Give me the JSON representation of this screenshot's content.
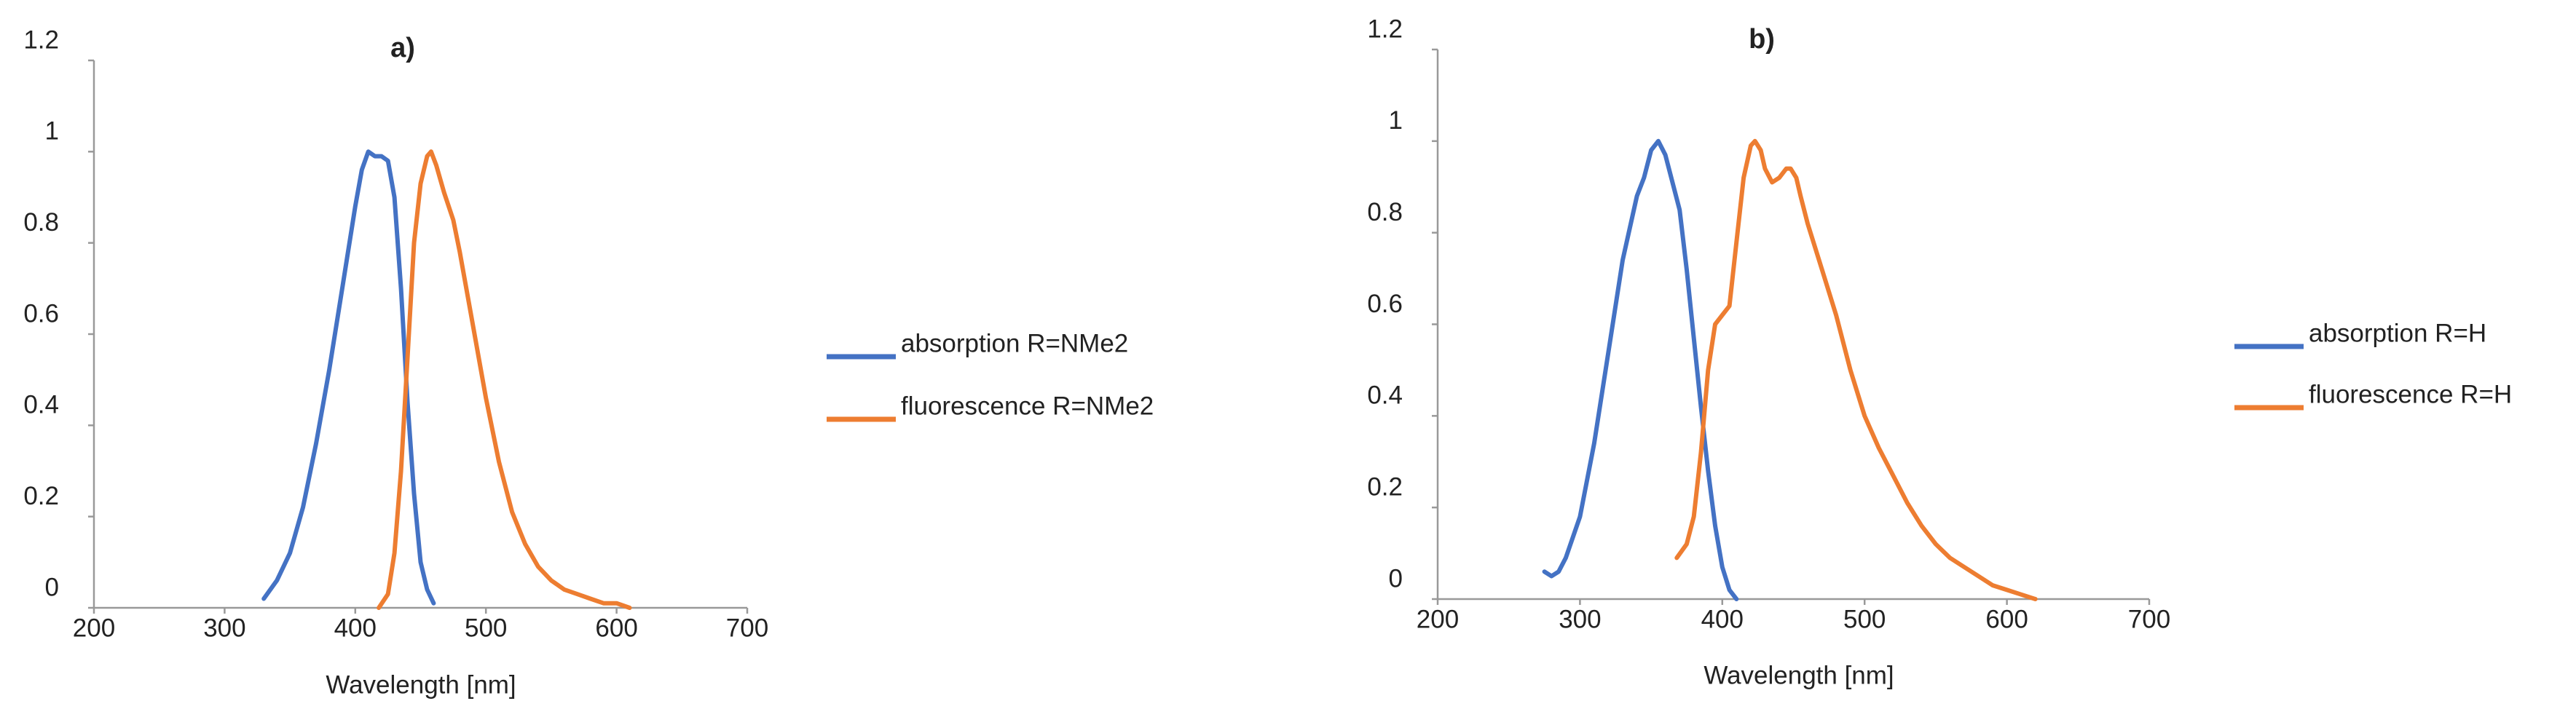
{
  "chart_data": [
    {
      "type": "line",
      "title": "a)",
      "x_label": "Wavelength [nm]",
      "xlim": [
        200,
        700
      ],
      "xticks": [
        200,
        300,
        400,
        500,
        600,
        700
      ],
      "ylim": [
        0,
        1.2
      ],
      "yticks": [
        0,
        0.2,
        0.4,
        0.6,
        0.8,
        1,
        1.2
      ],
      "grid": false,
      "legend": "right",
      "series": [
        {
          "name": "absorption R=NMe2",
          "color": "#4472c4",
          "x": [
            330,
            340,
            350,
            360,
            370,
            380,
            390,
            400,
            405,
            410,
            415,
            420,
            425,
            430,
            435,
            440,
            445,
            450,
            455,
            460
          ],
          "values": [
            0.02,
            0.06,
            0.12,
            0.22,
            0.36,
            0.52,
            0.7,
            0.88,
            0.96,
            1.0,
            0.99,
            0.99,
            0.98,
            0.9,
            0.7,
            0.45,
            0.25,
            0.1,
            0.04,
            0.01
          ]
        },
        {
          "name": "fluorescence R=NMe2",
          "color": "#ed7d31",
          "x": [
            418,
            425,
            430,
            435,
            440,
            445,
            450,
            455,
            458,
            462,
            468,
            475,
            480,
            490,
            500,
            510,
            520,
            530,
            540,
            550,
            560,
            570,
            580,
            590,
            600,
            610
          ],
          "values": [
            0,
            0.03,
            0.12,
            0.3,
            0.55,
            0.8,
            0.93,
            0.99,
            1.0,
            0.97,
            0.91,
            0.85,
            0.78,
            0.62,
            0.46,
            0.32,
            0.21,
            0.14,
            0.09,
            0.06,
            0.04,
            0.03,
            0.02,
            0.01,
            0.01,
            0
          ]
        }
      ]
    },
    {
      "type": "line",
      "title": "b)",
      "x_label": "Wavelength [nm]",
      "xlim": [
        200,
        700
      ],
      "xticks": [
        200,
        300,
        400,
        500,
        600,
        700
      ],
      "ylim": [
        0,
        1.2
      ],
      "yticks": [
        0,
        0.2,
        0.4,
        0.6,
        0.8,
        1,
        1.2
      ],
      "grid": false,
      "legend": "right",
      "series": [
        {
          "name": "absorption R=H",
          "color": "#4472c4",
          "x": [
            275,
            280,
            285,
            290,
            300,
            310,
            320,
            330,
            340,
            345,
            350,
            355,
            360,
            365,
            370,
            375,
            380,
            385,
            390,
            395,
            400,
            405,
            410
          ],
          "values": [
            0.06,
            0.05,
            0.06,
            0.09,
            0.18,
            0.34,
            0.54,
            0.74,
            0.88,
            0.92,
            0.98,
            1.0,
            0.97,
            0.91,
            0.85,
            0.72,
            0.57,
            0.42,
            0.28,
            0.16,
            0.07,
            0.02,
            0
          ]
        },
        {
          "name": "fluorescence R=H",
          "color": "#ed7d31",
          "x": [
            368,
            375,
            380,
            385,
            390,
            395,
            400,
            405,
            410,
            415,
            420,
            423,
            427,
            430,
            435,
            440,
            445,
            448,
            452,
            455,
            460,
            470,
            480,
            490,
            500,
            510,
            520,
            530,
            540,
            550,
            560,
            570,
            580,
            590,
            600,
            610,
            620
          ],
          "values": [
            0.09,
            0.12,
            0.18,
            0.32,
            0.5,
            0.6,
            0.62,
            0.64,
            0.78,
            0.92,
            0.99,
            1.0,
            0.98,
            0.94,
            0.91,
            0.92,
            0.94,
            0.94,
            0.92,
            0.88,
            0.82,
            0.72,
            0.62,
            0.5,
            0.4,
            0.33,
            0.27,
            0.21,
            0.16,
            0.12,
            0.09,
            0.07,
            0.05,
            0.03,
            0.02,
            0.01,
            0
          ]
        }
      ]
    }
  ]
}
